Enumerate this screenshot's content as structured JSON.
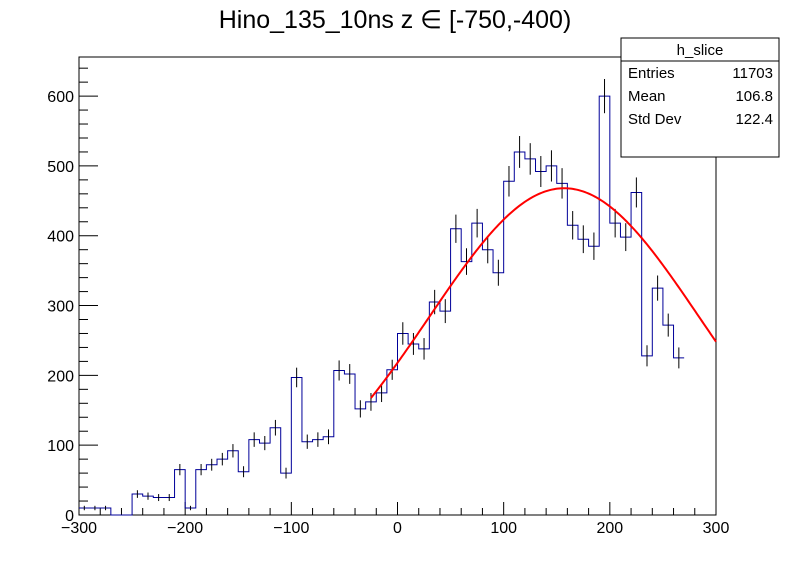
{
  "chart_data": {
    "type": "histogram",
    "title": "Hino_135_10ns z  ∈ [-750,-400)",
    "xlim": [
      -300,
      300
    ],
    "ylim": [
      0,
      656
    ],
    "x_ticks": [
      -300,
      -200,
      -100,
      0,
      100,
      200,
      300
    ],
    "y_ticks": [
      0,
      100,
      200,
      300,
      400,
      500,
      600
    ],
    "grid": false,
    "bin_width": 10,
    "bins": [
      {
        "x": -300,
        "y": 10
      },
      {
        "x": -290,
        "y": 10
      },
      {
        "x": -280,
        "y": 10
      },
      {
        "x": -270,
        "y": 0
      },
      {
        "x": -260,
        "y": 0
      },
      {
        "x": -250,
        "y": 30
      },
      {
        "x": -240,
        "y": 27
      },
      {
        "x": -230,
        "y": 25
      },
      {
        "x": -220,
        "y": 25
      },
      {
        "x": -210,
        "y": 65
      },
      {
        "x": -200,
        "y": 10
      },
      {
        "x": -190,
        "y": 65
      },
      {
        "x": -180,
        "y": 72
      },
      {
        "x": -170,
        "y": 80
      },
      {
        "x": -160,
        "y": 92
      },
      {
        "x": -150,
        "y": 62
      },
      {
        "x": -140,
        "y": 108
      },
      {
        "x": -130,
        "y": 103
      },
      {
        "x": -120,
        "y": 125
      },
      {
        "x": -110,
        "y": 60
      },
      {
        "x": -100,
        "y": 197
      },
      {
        "x": -90,
        "y": 105
      },
      {
        "x": -80,
        "y": 108
      },
      {
        "x": -70,
        "y": 112
      },
      {
        "x": -60,
        "y": 207
      },
      {
        "x": -50,
        "y": 202
      },
      {
        "x": -40,
        "y": 152
      },
      {
        "x": -30,
        "y": 162
      },
      {
        "x": -20,
        "y": 175
      },
      {
        "x": -10,
        "y": 208
      },
      {
        "x": 0,
        "y": 260
      },
      {
        "x": 10,
        "y": 245
      },
      {
        "x": 20,
        "y": 238
      },
      {
        "x": 30,
        "y": 305
      },
      {
        "x": 40,
        "y": 292
      },
      {
        "x": 50,
        "y": 410
      },
      {
        "x": 60,
        "y": 363
      },
      {
        "x": 70,
        "y": 418
      },
      {
        "x": 80,
        "y": 380
      },
      {
        "x": 90,
        "y": 347
      },
      {
        "x": 100,
        "y": 478
      },
      {
        "x": 110,
        "y": 520
      },
      {
        "x": 120,
        "y": 510
      },
      {
        "x": 130,
        "y": 492
      },
      {
        "x": 140,
        "y": 500
      },
      {
        "x": 150,
        "y": 475
      },
      {
        "x": 160,
        "y": 415
      },
      {
        "x": 170,
        "y": 395
      },
      {
        "x": 180,
        "y": 385
      },
      {
        "x": 190,
        "y": 600
      },
      {
        "x": 200,
        "y": 418
      },
      {
        "x": 210,
        "y": 398
      },
      {
        "x": 220,
        "y": 462
      },
      {
        "x": 230,
        "y": 228
      },
      {
        "x": 240,
        "y": 325
      },
      {
        "x": 250,
        "y": 272
      },
      {
        "x": 260,
        "y": 225
      }
    ],
    "fit": {
      "type": "gaussian",
      "amplitude": 468,
      "mean": 157,
      "sigma": 127,
      "x_range": [
        -25,
        300
      ],
      "color": "#ff0000"
    },
    "hist_color": "#000099",
    "stats_box": {
      "title": "h_slice",
      "rows": [
        {
          "label": "Entries",
          "value": "11703"
        },
        {
          "label": "Mean",
          "value": "106.8"
        },
        {
          "label": "Std Dev",
          "value": "122.4"
        }
      ]
    }
  }
}
